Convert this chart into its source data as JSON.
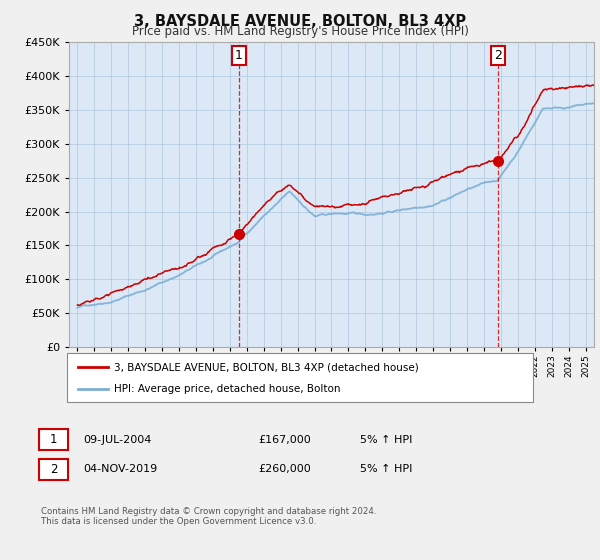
{
  "title": "3, BAYSDALE AVENUE, BOLTON, BL3 4XP",
  "subtitle": "Price paid vs. HM Land Registry's House Price Index (HPI)",
  "ylim": [
    0,
    450000
  ],
  "xlim": [
    1994.5,
    2025.5
  ],
  "hpi_color": "#7bafd4",
  "property_color": "#cc0000",
  "marker_color": "#cc0000",
  "plot_bg": "#dce8f5",
  "bg_color": "#f0f0f0",
  "grid_color": "#b0c8e0",
  "legend1": "3, BAYSDALE AVENUE, BOLTON, BL3 4XP (detached house)",
  "legend2": "HPI: Average price, detached house, Bolton",
  "sale1_label": "1",
  "sale1_date": "09-JUL-2004",
  "sale1_price": "£167,000",
  "sale1_hpi": "5% ↑ HPI",
  "sale1_year": 2004.53,
  "sale1_value": 167000,
  "sale2_label": "2",
  "sale2_date": "04-NOV-2019",
  "sale2_price": "£260,000",
  "sale2_hpi": "5% ↑ HPI",
  "sale2_year": 2019.84,
  "sale2_value": 260000,
  "footnote": "Contains HM Land Registry data © Crown copyright and database right 2024.\nThis data is licensed under the Open Government Licence v3.0."
}
